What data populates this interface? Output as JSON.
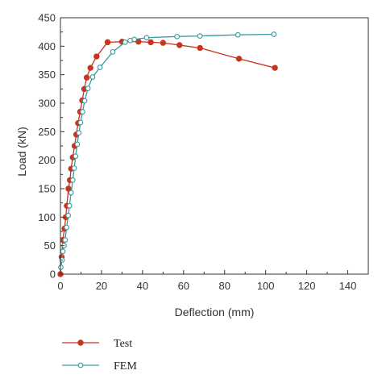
{
  "chart_data": {
    "type": "line",
    "xlabel": "Deflection (mm)",
    "ylabel": "Load (kN)",
    "xlim": [
      0,
      150
    ],
    "ylim": [
      0,
      450
    ],
    "x_ticks": [
      0,
      20,
      40,
      60,
      80,
      100,
      120,
      140
    ],
    "y_ticks": [
      0,
      50,
      100,
      150,
      200,
      250,
      300,
      350,
      400,
      450
    ],
    "legend_placement": "bottom-left",
    "grid": false,
    "series": [
      {
        "name": "Test",
        "color": "#c8351f",
        "marker": "filled-circle",
        "points": [
          [
            0,
            0
          ],
          [
            0.6,
            30
          ],
          [
            1.2,
            60
          ],
          [
            2.0,
            80
          ],
          [
            2.6,
            100
          ],
          [
            3.1,
            120
          ],
          [
            3.9,
            150
          ],
          [
            4.6,
            165
          ],
          [
            5.2,
            185
          ],
          [
            6.0,
            205
          ],
          [
            6.9,
            225
          ],
          [
            7.7,
            245
          ],
          [
            8.6,
            265
          ],
          [
            9.6,
            285
          ],
          [
            10.6,
            305
          ],
          [
            11.6,
            325
          ],
          [
            12.8,
            345
          ],
          [
            14.6,
            362
          ],
          [
            17.6,
            382
          ],
          [
            23.0,
            407
          ],
          [
            30.0,
            408
          ],
          [
            38.0,
            408
          ],
          [
            44.0,
            407
          ],
          [
            50.0,
            406
          ],
          [
            58.0,
            402
          ],
          [
            68.0,
            397
          ],
          [
            87.0,
            378
          ],
          [
            104.5,
            362
          ]
        ]
      },
      {
        "name": "FEM",
        "color": "#3a9aa0",
        "marker": "open-circle",
        "points": [
          [
            0.2,
            12
          ],
          [
            0.8,
            25
          ],
          [
            1.2,
            40
          ],
          [
            1.8,
            50
          ],
          [
            2.3,
            60
          ],
          [
            3.0,
            82
          ],
          [
            3.8,
            103
          ],
          [
            4.4,
            120
          ],
          [
            5.2,
            143
          ],
          [
            6.0,
            165
          ],
          [
            6.7,
            186
          ],
          [
            7.4,
            207
          ],
          [
            8.2,
            228
          ],
          [
            9.0,
            248
          ],
          [
            9.8,
            266
          ],
          [
            10.8,
            285
          ],
          [
            11.8,
            304
          ],
          [
            13.4,
            326
          ],
          [
            15.7,
            346
          ],
          [
            19.3,
            363
          ],
          [
            25.5,
            390
          ],
          [
            31.5,
            407
          ],
          [
            34.0,
            410
          ],
          [
            36.0,
            412
          ],
          [
            42.0,
            415
          ],
          [
            56.8,
            417
          ],
          [
            68.0,
            418
          ],
          [
            86.5,
            420
          ],
          [
            104.0,
            421
          ]
        ]
      }
    ]
  }
}
